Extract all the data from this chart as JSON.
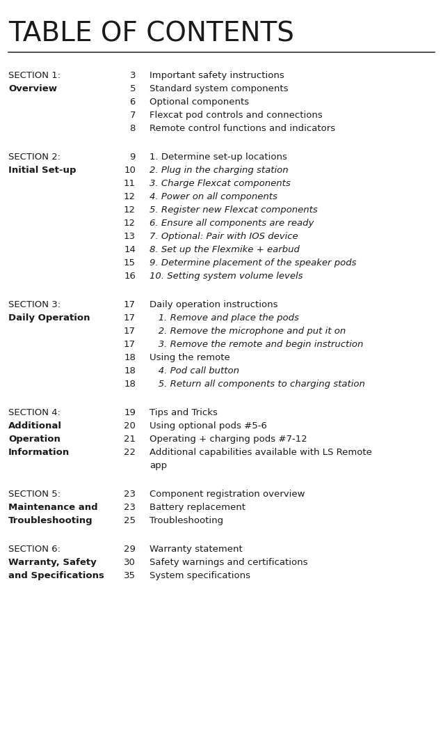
{
  "title": "TABLE OF CONTENTS",
  "bg_color": "#ffffff",
  "title_color": "#1a1a1a",
  "text_color": "#1a1a1a",
  "sections": [
    {
      "section_label": "SECTION 1:",
      "section_subtitle": "Overview",
      "entries": [
        {
          "page": "3",
          "text": "Important safety instructions",
          "italic": false
        },
        {
          "page": "5",
          "text": "Standard system components",
          "italic": false
        },
        {
          "page": "6",
          "text": "Optional components",
          "italic": false
        },
        {
          "page": "7",
          "text": "Flexcat pod controls and connections",
          "italic": false
        },
        {
          "page": "8",
          "text": "Remote control functions and indicators",
          "italic": false
        }
      ]
    },
    {
      "section_label": "SECTION 2:",
      "section_subtitle": "Initial Set-up",
      "entries": [
        {
          "page": "9",
          "text": "1. Determine set-up locations",
          "italic": false
        },
        {
          "page": "10",
          "text": "2. Plug in the charging station",
          "italic": true
        },
        {
          "page": "11",
          "text": "3. Charge Flexcat components",
          "italic": true
        },
        {
          "page": "12",
          "text": "4. Power on all components",
          "italic": true
        },
        {
          "page": "12",
          "text": "5. Register new Flexcat components",
          "italic": true
        },
        {
          "page": "12",
          "text": "6. Ensure all components are ready",
          "italic": true
        },
        {
          "page": "13",
          "text": "7. Optional: Pair with IOS device",
          "italic": true
        },
        {
          "page": "14",
          "text": "8. Set up the Flexmike + earbud",
          "italic": true
        },
        {
          "page": "15",
          "text": "9. Determine placement of the speaker pods",
          "italic": true
        },
        {
          "page": "16",
          "text": "10. Setting system volume levels",
          "italic": true
        }
      ]
    },
    {
      "section_label": "SECTION 3:",
      "section_subtitle": "Daily Operation",
      "entries": [
        {
          "page": "17",
          "text": "Daily operation instructions",
          "italic": false
        },
        {
          "page": "17",
          "text": "   1. Remove and place the pods",
          "italic": true
        },
        {
          "page": "17",
          "text": "   2. Remove the microphone and put it on",
          "italic": true
        },
        {
          "page": "17",
          "text": "   3. Remove the remote and begin instruction",
          "italic": true
        },
        {
          "page": "18",
          "text": "Using the remote",
          "italic": false
        },
        {
          "page": "18",
          "text": "   4. Pod call button",
          "italic": true
        },
        {
          "page": "18",
          "text": "   5. Return all components to charging station",
          "italic": true
        }
      ]
    },
    {
      "section_label": "SECTION 4:",
      "section_subtitle": "Additional\nOperation\nInformation",
      "entries": [
        {
          "page": "19",
          "text": "Tips and Tricks",
          "italic": false
        },
        {
          "page": "20",
          "text": "Using optional pods #5-6",
          "italic": false
        },
        {
          "page": "21",
          "text": "Operating + charging pods #7-12",
          "italic": false
        },
        {
          "page": "22",
          "text": "Additional capabilities available with LS Remote\napp",
          "italic": false
        }
      ]
    },
    {
      "section_label": "SECTION 5:",
      "section_subtitle": "Maintenance and\nTroubleshooting",
      "entries": [
        {
          "page": "23",
          "text": "Component registration overview",
          "italic": false
        },
        {
          "page": "23",
          "text": "Battery replacement",
          "italic": false
        },
        {
          "page": "25",
          "text": "Troubleshooting",
          "italic": false
        }
      ]
    },
    {
      "section_label": "SECTION 6:",
      "section_subtitle": "Warranty, Safety\nand Specifications",
      "entries": [
        {
          "page": "29",
          "text": "Warranty statement",
          "italic": false
        },
        {
          "page": "30",
          "text": "Safety warnings and certifications",
          "italic": false
        },
        {
          "page": "35",
          "text": "System specifications",
          "italic": false
        }
      ]
    }
  ]
}
